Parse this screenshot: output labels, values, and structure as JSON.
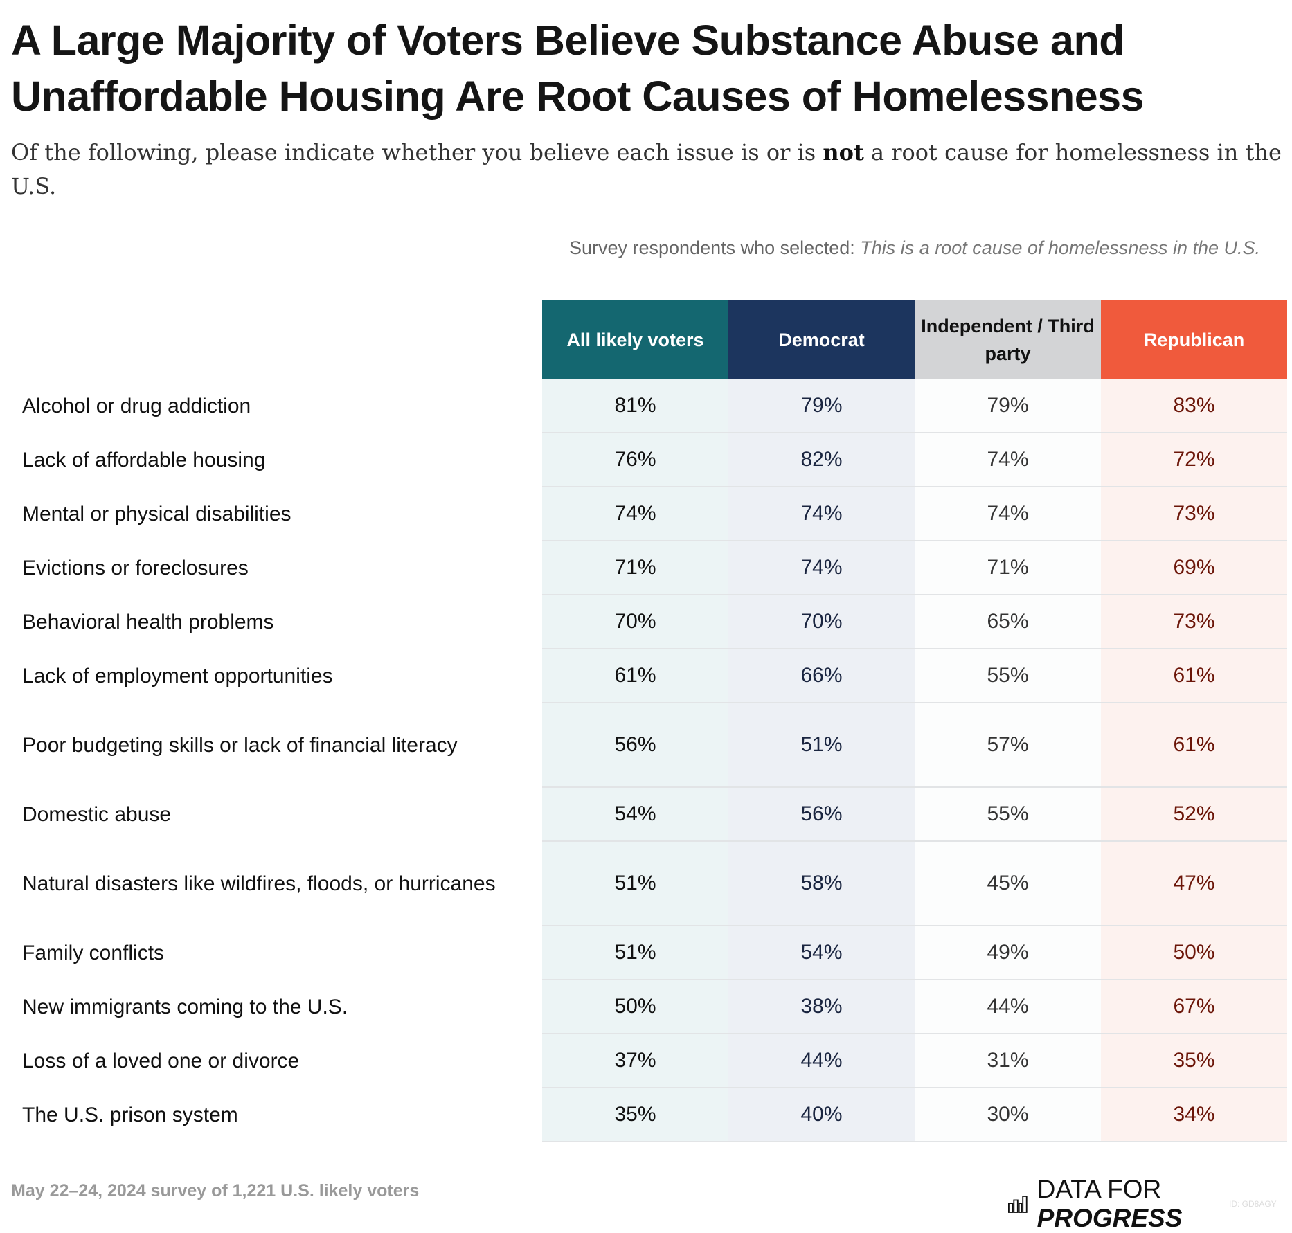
{
  "title": "A Large Majority of Voters Believe Substance Abuse and Unaffordable Housing Are Root Causes of Homelessness",
  "subtitle": {
    "pre": "Of the following, please indicate whether you believe each issue is or is ",
    "bold": "not",
    "post": " a root cause for homelessness in the U.S."
  },
  "note": {
    "pre": "Survey respondents who selected: ",
    "italic": "This is a root cause of homelessness in the U.S."
  },
  "colors": {
    "all": "#146770",
    "dem": "#1c355e",
    "ind": "#d3d4d6",
    "rep": "#f05a3c"
  },
  "chart_data": {
    "type": "table",
    "columns": [
      "All likely voters",
      "Democrat",
      "Independent / Third party",
      "Republican"
    ],
    "rows": [
      {
        "label": "Alcohol or drug addiction",
        "values": [
          "81%",
          "79%",
          "79%",
          "83%"
        ]
      },
      {
        "label": "Lack of affordable housing",
        "values": [
          "76%",
          "82%",
          "74%",
          "72%"
        ]
      },
      {
        "label": "Mental or physical disabilities",
        "values": [
          "74%",
          "74%",
          "74%",
          "73%"
        ]
      },
      {
        "label": "Evictions or foreclosures",
        "values": [
          "71%",
          "74%",
          "71%",
          "69%"
        ]
      },
      {
        "label": "Behavioral health problems",
        "values": [
          "70%",
          "70%",
          "65%",
          "73%"
        ]
      },
      {
        "label": "Lack of employment opportunities",
        "values": [
          "61%",
          "66%",
          "55%",
          "61%"
        ]
      },
      {
        "label": "Poor budgeting skills or lack of financial literacy",
        "values": [
          "56%",
          "51%",
          "57%",
          "61%"
        ]
      },
      {
        "label": "Domestic abuse",
        "values": [
          "54%",
          "56%",
          "55%",
          "52%"
        ]
      },
      {
        "label": "Natural disasters like wildfires, floods, or hurricanes",
        "values": [
          "51%",
          "58%",
          "45%",
          "47%"
        ]
      },
      {
        "label": "Family conflicts",
        "values": [
          "51%",
          "54%",
          "49%",
          "50%"
        ]
      },
      {
        "label": "New immigrants coming to the U.S.",
        "values": [
          "50%",
          "38%",
          "44%",
          "67%"
        ]
      },
      {
        "label": "Loss of a loved one or divorce",
        "values": [
          "37%",
          "44%",
          "31%",
          "35%"
        ]
      },
      {
        "label": "The U.S. prison system",
        "values": [
          "35%",
          "40%",
          "30%",
          "34%"
        ]
      }
    ]
  },
  "footer": "May 22–24, 2024 survey of 1,221 U.S. likely voters",
  "logo": {
    "a": "DATA FOR",
    "b": "PROGRESS",
    "icon": "bar-chart-icon"
  },
  "id": "ID: GD8AGY"
}
